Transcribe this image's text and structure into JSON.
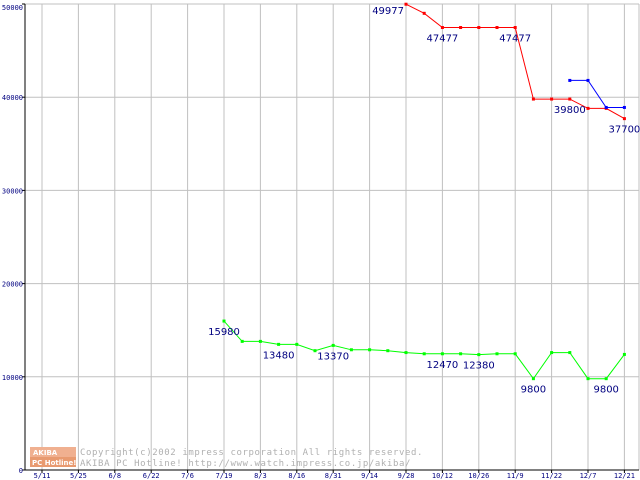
{
  "chart_data": {
    "type": "line",
    "categories": [
      "5/11",
      "5/25",
      "6/8",
      "6/22",
      "7/6",
      "7/19",
      "8/3",
      "8/16",
      "8/31",
      "9/14",
      "9/28",
      "10/12",
      "10/26",
      "11/9",
      "11/22",
      "12/7",
      "12/21"
    ],
    "ylim": [
      0,
      50000
    ],
    "y_ticks": [
      0,
      10000,
      20000,
      30000,
      40000,
      50000
    ],
    "grid": true,
    "series": [
      {
        "color": "#ff0000",
        "points": [
          {
            "x": 10.0,
            "y": 49977
          },
          {
            "x": 10.5,
            "y": 49000
          },
          {
            "x": 11.0,
            "y": 47477
          },
          {
            "x": 11.5,
            "y": 47477
          },
          {
            "x": 12.0,
            "y": 47477
          },
          {
            "x": 12.5,
            "y": 47477
          },
          {
            "x": 13.0,
            "y": 47477
          },
          {
            "x": 13.5,
            "y": 39800
          },
          {
            "x": 14.0,
            "y": 39800
          },
          {
            "x": 14.5,
            "y": 39800
          },
          {
            "x": 15.0,
            "y": 38800
          },
          {
            "x": 15.5,
            "y": 38800
          },
          {
            "x": 16.0,
            "y": 37700
          }
        ]
      },
      {
        "color": "#0000ff",
        "points": [
          {
            "x": 14.5,
            "y": 41800
          },
          {
            "x": 15.0,
            "y": 41800
          },
          {
            "x": 15.5,
            "y": 38900
          },
          {
            "x": 16.0,
            "y": 38900
          }
        ]
      },
      {
        "color": "#00ff00",
        "points": [
          {
            "x": 5.0,
            "y": 15980
          },
          {
            "x": 5.5,
            "y": 13800
          },
          {
            "x": 6.0,
            "y": 13800
          },
          {
            "x": 6.5,
            "y": 13480
          },
          {
            "x": 7.0,
            "y": 13480
          },
          {
            "x": 7.5,
            "y": 12800
          },
          {
            "x": 8.0,
            "y": 13370
          },
          {
            "x": 8.5,
            "y": 12900
          },
          {
            "x": 9.0,
            "y": 12900
          },
          {
            "x": 9.5,
            "y": 12800
          },
          {
            "x": 10.0,
            "y": 12600
          },
          {
            "x": 10.5,
            "y": 12470
          },
          {
            "x": 11.0,
            "y": 12470
          },
          {
            "x": 11.5,
            "y": 12470
          },
          {
            "x": 12.0,
            "y": 12380
          },
          {
            "x": 12.5,
            "y": 12470
          },
          {
            "x": 13.0,
            "y": 12470
          },
          {
            "x": 13.5,
            "y": 9800
          },
          {
            "x": 14.0,
            "y": 12600
          },
          {
            "x": 14.5,
            "y": 12600
          },
          {
            "x": 15.0,
            "y": 9800
          },
          {
            "x": 15.5,
            "y": 9800
          },
          {
            "x": 16.0,
            "y": 12400
          }
        ]
      }
    ],
    "annotations": [
      {
        "text": "49977",
        "x": 10.0,
        "y": 49977,
        "pos": "left"
      },
      {
        "text": "47477",
        "x": 11.0,
        "y": 47477,
        "pos": "below"
      },
      {
        "text": "47477",
        "x": 13.0,
        "y": 47477,
        "pos": "below"
      },
      {
        "text": "39800",
        "x": 14.5,
        "y": 39800,
        "pos": "below"
      },
      {
        "text": "37700",
        "x": 16.0,
        "y": 37700,
        "pos": "below"
      },
      {
        "text": "15980",
        "x": 5.0,
        "y": 15980,
        "pos": "below"
      },
      {
        "text": "13480",
        "x": 6.5,
        "y": 13480,
        "pos": "below"
      },
      {
        "text": "13370",
        "x": 8.0,
        "y": 13370,
        "pos": "below"
      },
      {
        "text": "12470",
        "x": 11.0,
        "y": 12470,
        "pos": "below"
      },
      {
        "text": "12380",
        "x": 12.0,
        "y": 12380,
        "pos": "below"
      },
      {
        "text": "9800",
        "x": 13.5,
        "y": 9800,
        "pos": "below"
      },
      {
        "text": "9800",
        "x": 15.5,
        "y": 9800,
        "pos": "below"
      }
    ]
  },
  "watermark": {
    "logo_top": "AKIBA",
    "logo_bottom": "PC Hotline!",
    "line1": "Copyright(c)2002 impress corporation All rights reserved.",
    "line2": "AKIBA PC Hotline!  http://www.watch.impress.co.jp/akiba/"
  },
  "colors": {
    "grid": "#c0c0c0",
    "axis": "#000000",
    "tick_text": "#000080",
    "logo": "#f0b090"
  }
}
